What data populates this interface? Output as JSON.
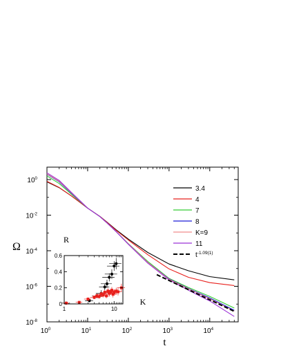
{
  "chart_data": [
    {
      "type": "line",
      "title": "",
      "xlabel": "t",
      "ylabel": "Ω",
      "xscale": "log",
      "yscale": "log",
      "xlim": [
        1,
        50000
      ],
      "ylim": [
        1e-08,
        5
      ],
      "grid": false,
      "legend_position": "top-right",
      "x_ticks": [
        {
          "value": 1,
          "label": "10",
          "exp": "0"
        },
        {
          "value": 10,
          "label": "10",
          "exp": "1"
        },
        {
          "value": 100,
          "label": "10",
          "exp": "2"
        },
        {
          "value": 1000,
          "label": "10",
          "exp": "3"
        },
        {
          "value": 10000,
          "label": "10",
          "exp": "4"
        }
      ],
      "y_ticks": [
        {
          "value": 1,
          "label": "10",
          "exp": "0"
        },
        {
          "value": 0.01,
          "label": "10",
          "exp": "-2"
        },
        {
          "value": 0.0001,
          "label": "10",
          "exp": "-4"
        },
        {
          "value": 1e-06,
          "label": "10",
          "exp": "-6"
        },
        {
          "value": 1e-08,
          "label": "10",
          "exp": "-8"
        }
      ],
      "series": [
        {
          "name": "3.4",
          "color": "#000000",
          "dash": "",
          "x": [
            1,
            2,
            4,
            10,
            20,
            30,
            50,
            100,
            300,
            1000,
            3000,
            10000,
            40000
          ],
          "y": [
            0.75,
            0.35,
            0.12,
            0.025,
            0.0085,
            0.004,
            0.0015,
            0.00045,
            8e-05,
            1.8e-05,
            7.5e-06,
            3.5e-06,
            2.3e-06
          ]
        },
        {
          "name": "4",
          "color": "#e8201c",
          "dash": "",
          "x": [
            1,
            2,
            4,
            10,
            20,
            30,
            50,
            100,
            300,
            1000,
            3000,
            10000,
            40000
          ],
          "y": [
            0.8,
            0.36,
            0.12,
            0.025,
            0.0085,
            0.0039,
            0.0014,
            0.0004,
            6e-05,
            9.5e-06,
            3.2e-06,
            1.6e-06,
            1.1e-06
          ]
        },
        {
          "name": "7",
          "color": "#33cc33",
          "dash": "",
          "x": [
            1,
            2,
            4,
            10,
            20,
            30,
            50,
            100,
            300,
            1000,
            3000,
            10000,
            40000
          ],
          "y": [
            1.6,
            0.6,
            0.15,
            0.025,
            0.0083,
            0.0036,
            0.0012,
            0.00025,
            2.5e-05,
            2.8e-06,
            8.5e-07,
            2.7e-07,
            6e-08
          ]
        },
        {
          "name": "8",
          "color": "#1a1ad6",
          "dash": "",
          "x": [
            1,
            2,
            4,
            10,
            20,
            30,
            50,
            100,
            300,
            1000,
            3000,
            10000,
            40000
          ],
          "y": [
            2.0,
            0.75,
            0.17,
            0.025,
            0.0083,
            0.0036,
            0.0012,
            0.00024,
            2.2e-05,
            2.6e-06,
            7.5e-07,
            2.2e-07,
            4.5e-08
          ]
        },
        {
          "name": "K=9",
          "color": "#f08c8c",
          "dash": "",
          "x": [
            1,
            2,
            4,
            10,
            20,
            30,
            50,
            100,
            300,
            1000,
            3000,
            10000,
            40000
          ],
          "y": [
            2.1,
            0.8,
            0.18,
            0.025,
            0.0083,
            0.0036,
            0.0012,
            0.00024,
            2.2e-05,
            2.5e-06,
            7.2e-07,
            2e-07,
            4e-08
          ]
        },
        {
          "name": "11",
          "color": "#9b30d6",
          "dash": "",
          "x": [
            1,
            2,
            4,
            10,
            20,
            30,
            50,
            100,
            300,
            1000,
            3000,
            10000,
            40000
          ],
          "y": [
            2.4,
            0.9,
            0.19,
            0.025,
            0.0083,
            0.0036,
            0.0012,
            0.00023,
            2e-05,
            2.3e-06,
            6e-07,
            1.5e-07,
            2e-08
          ]
        },
        {
          "name": "t",
          "name_sup": "-1.09(1)",
          "color": "#000000",
          "dash": "6,3",
          "x": [
            500,
            40000
          ],
          "y": [
            4.5e-06,
            3.9e-08
          ]
        }
      ]
    },
    {
      "type": "scatter",
      "title": "",
      "xlabel": "K",
      "ylabel": "R",
      "xscale": "log",
      "yscale": "linear",
      "xlim": [
        1,
        15
      ],
      "ylim": [
        0,
        0.6
      ],
      "grid": false,
      "x_ticks": [
        {
          "value": 1,
          "label": "1"
        },
        {
          "value": 10,
          "label": "10"
        }
      ],
      "y_ticks": [
        {
          "value": 0,
          "label": "0"
        },
        {
          "value": 0.2,
          "label": "0.2"
        },
        {
          "value": 0.4,
          "label": "0.4"
        },
        {
          "value": 0.6,
          "label": "0.6"
        }
      ],
      "series": [
        {
          "name": "",
          "color": "#000000",
          "marker": "circle",
          "x": [
            1.1,
            3.2,
            4.5,
            5.5,
            6.5,
            7.2,
            8,
            9,
            10,
            11
          ],
          "y": [
            0.01,
            0.04,
            0.1,
            0.13,
            0.21,
            0.25,
            0.33,
            0.37,
            0.47,
            0.5
          ],
          "xerr": [
            0.2,
            0.6,
            0.9,
            1.2,
            1.5,
            1.8,
            2.2,
            2.5,
            2.8,
            3
          ],
          "yerr": [
            0.01,
            0.02,
            0.03,
            0.04,
            0.04,
            0.05,
            0.05,
            0.06,
            0.06,
            0.07
          ]
        },
        {
          "name": "",
          "color": "#e8201c",
          "marker": "square",
          "x": [
            1.1,
            2,
            3,
            4,
            4.5,
            5,
            5.5,
            6,
            6.5,
            7,
            7.5,
            8,
            8.5,
            9,
            9.5,
            10,
            11,
            12,
            14
          ],
          "y": [
            0.01,
            0.02,
            0.06,
            0.08,
            0.1,
            0.09,
            0.12,
            0.11,
            0.14,
            0.1,
            0.16,
            0.13,
            0.15,
            0.17,
            0.12,
            0.14,
            0.16,
            0.15,
            0.2
          ],
          "xerr": [
            0.15,
            0.3,
            0.5,
            0.7,
            0.8,
            0.9,
            1,
            1.1,
            1.2,
            1.3,
            1.4,
            1.5,
            1.6,
            1.7,
            1.8,
            1.9,
            2,
            2.2,
            2.5
          ],
          "yerr": [
            0.01,
            0.015,
            0.02,
            0.02,
            0.025,
            0.025,
            0.03,
            0.03,
            0.03,
            0.03,
            0.035,
            0.035,
            0.035,
            0.04,
            0.04,
            0.04,
            0.04,
            0.045,
            0.05
          ]
        }
      ]
    }
  ]
}
